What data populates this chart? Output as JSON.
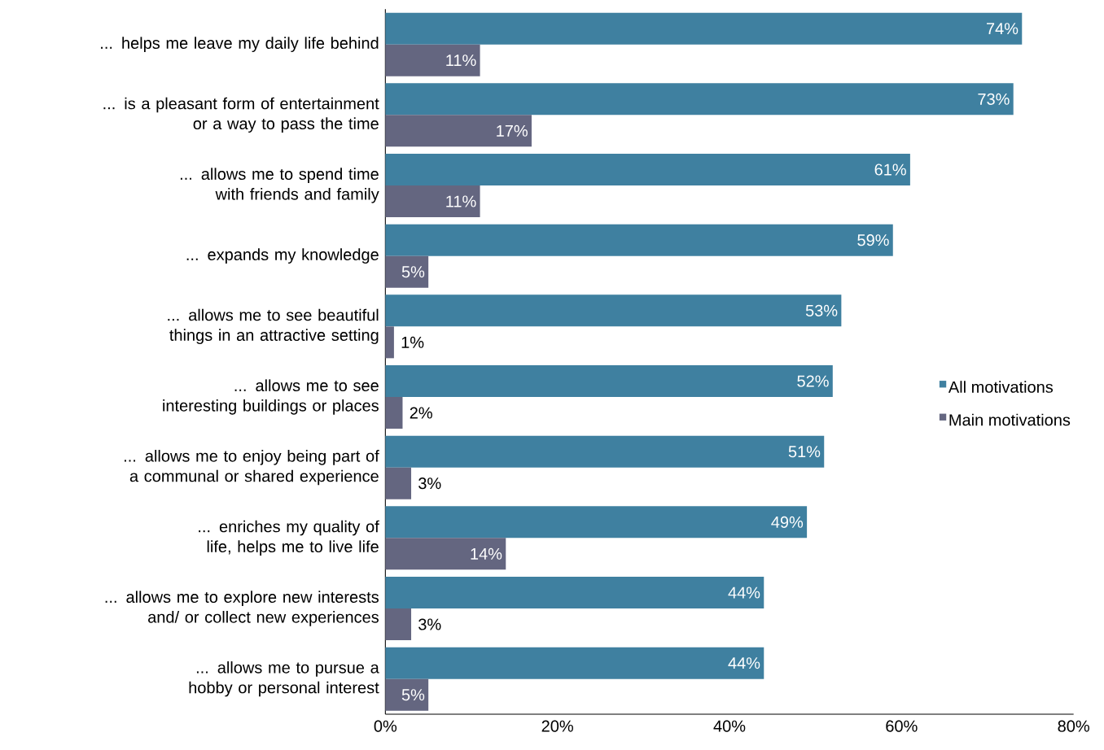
{
  "chart_data": {
    "type": "bar",
    "orientation": "horizontal",
    "categories": [
      "... helps me leave my daily life behind",
      "... is a pleasant form of entertainment or a way to pass the time",
      "... allows me to spend time with friends and family",
      "... expands my knowledge",
      "... allows me to see beautiful things in an attractive setting",
      "... allows me to see interesting buildings or places",
      "... allows me to enjoy being part of a communal or shared experience",
      "... enriches my quality of life, helps me to live life",
      "... allows me to explore new interests and/ or collect new experiences",
      "... allows me to pursue a hobby or personal interest"
    ],
    "series": [
      {
        "name": "All motivations",
        "color": "#3f80a0",
        "values": [
          74,
          73,
          61,
          59,
          53,
          52,
          51,
          49,
          44,
          44
        ],
        "value_labels": [
          "74%",
          "73%",
          "61%",
          "59%",
          "53%",
          "52%",
          "51%",
          "49%",
          "44%",
          "44%"
        ]
      },
      {
        "name": "Main motivations",
        "color": "#646680",
        "values": [
          11,
          17,
          11,
          5,
          1,
          2,
          3,
          14,
          3,
          5
        ],
        "value_labels": [
          "11%",
          "17%",
          "11%",
          "5%",
          "1%",
          "2%",
          "3%",
          "14%",
          "3%",
          "5%"
        ]
      }
    ],
    "xlim": [
      0,
      80
    ],
    "xticks": [
      {
        "value": 0,
        "label": "0%"
      },
      {
        "value": 20,
        "label": "20%"
      },
      {
        "value": 40,
        "label": "40%"
      },
      {
        "value": 60,
        "label": "60%"
      },
      {
        "value": 80,
        "label": "80%"
      }
    ],
    "grid": false,
    "legend": "right"
  }
}
